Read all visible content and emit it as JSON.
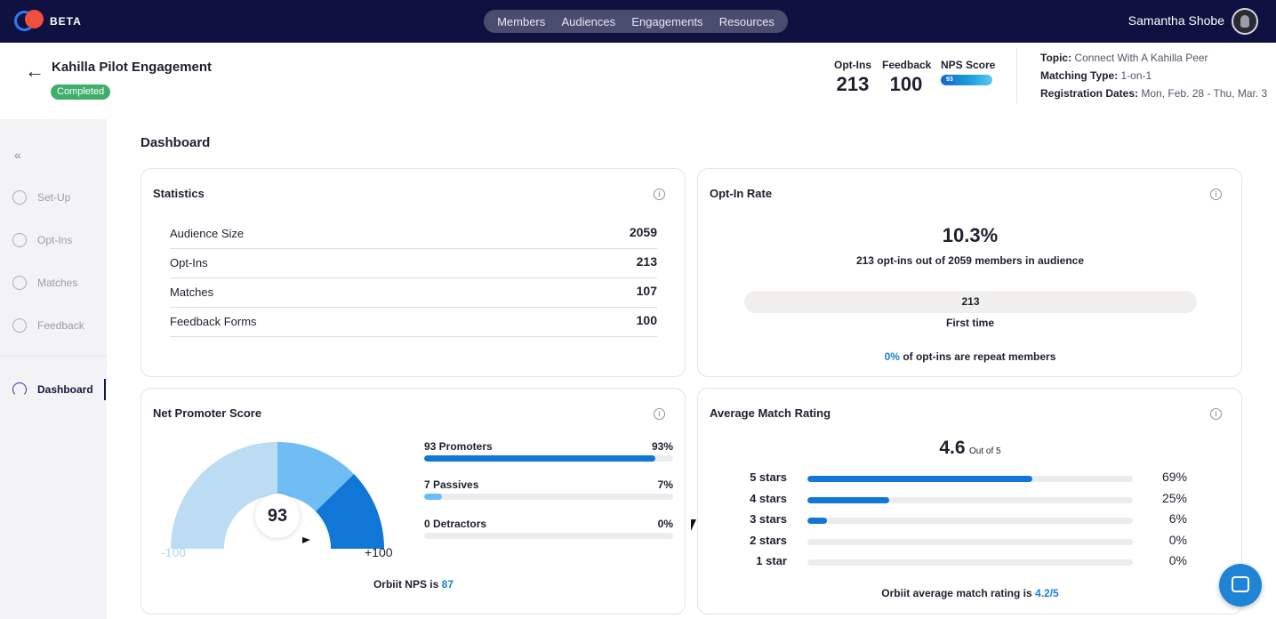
{
  "topnav": {
    "logo_text": "BETA",
    "menu": [
      "Members",
      "Audiences",
      "Engagements",
      "Resources"
    ],
    "user_name": "Samantha Shobe"
  },
  "header": {
    "back_icon": "arrow-left-icon",
    "title": "Kahilla Pilot Engagement",
    "status": "Completed",
    "stats": {
      "optins_label": "Opt-Ins",
      "optins_value": "213",
      "feedback_label": "Feedback",
      "feedback_value": "100",
      "nps_label": "NPS Score",
      "nps_value": "93"
    },
    "meta": {
      "topic_label": "Topic:",
      "topic_value": "Connect With A Kahilla Peer",
      "matching_label": "Matching Type:",
      "matching_value": "1-on-1",
      "dates_label": "Registration Dates:",
      "dates_value": "Mon, Feb. 28 - Thu, Mar. 3"
    }
  },
  "sidebar": {
    "collapse_icon": "double-chevron-left-icon",
    "items": [
      {
        "label": "Set-Up",
        "icon": "gear-icon"
      },
      {
        "label": "Opt-Ins",
        "icon": "user-add-icon"
      },
      {
        "label": "Matches",
        "icon": "rings-icon"
      },
      {
        "label": "Feedback",
        "icon": "smiley-icon"
      },
      {
        "label": "Dashboard",
        "icon": "gauge-icon",
        "active": true
      }
    ]
  },
  "main": {
    "title": "Dashboard",
    "statistics": {
      "title": "Statistics",
      "rows": [
        {
          "label": "Audience Size",
          "value": "2059"
        },
        {
          "label": "Opt-Ins",
          "value": "213"
        },
        {
          "label": "Matches",
          "value": "107"
        },
        {
          "label": "Feedback Forms",
          "value": "100"
        }
      ]
    },
    "optin_rate": {
      "title": "Opt-In Rate",
      "percent": "10.3%",
      "subtitle": "213 opt-ins out of 2059 members in audience",
      "bar_value": "213",
      "bar_label": "First time",
      "repeat_pct": "0%",
      "repeat_text": "of opt-ins are repeat members"
    },
    "nps": {
      "title": "Net Promoter Score",
      "score": "93",
      "min_label": "-100",
      "max_label": "+100",
      "rows": [
        {
          "label": "93 Promoters",
          "pct": "93%",
          "fill": 0.93,
          "color": "#1177d6"
        },
        {
          "label": "7 Passives",
          "pct": "7%",
          "fill": 0.07,
          "color": "#67c0f4"
        },
        {
          "label": "0 Detractors",
          "pct": "0%",
          "fill": 0.0,
          "color": "#1177d6"
        }
      ],
      "footer_text": "Orbiit NPS is",
      "footer_value": "87"
    },
    "rating": {
      "title": "Average Match Rating",
      "value": "4.6",
      "out_of": "Out of 5",
      "rows": [
        {
          "label": "5 stars",
          "pct": "69%",
          "fill": 0.69
        },
        {
          "label": "4 stars",
          "pct": "25%",
          "fill": 0.25
        },
        {
          "label": "3 stars",
          "pct": "6%",
          "fill": 0.06
        },
        {
          "label": "2 stars",
          "pct": "0%",
          "fill": 0.0
        },
        {
          "label": "1 star",
          "pct": "0%",
          "fill": 0.0
        }
      ],
      "footer_text": "Orbiit average match rating is",
      "footer_value": "4.2/5"
    }
  },
  "chat_icon": "chat-bubble-icon"
}
